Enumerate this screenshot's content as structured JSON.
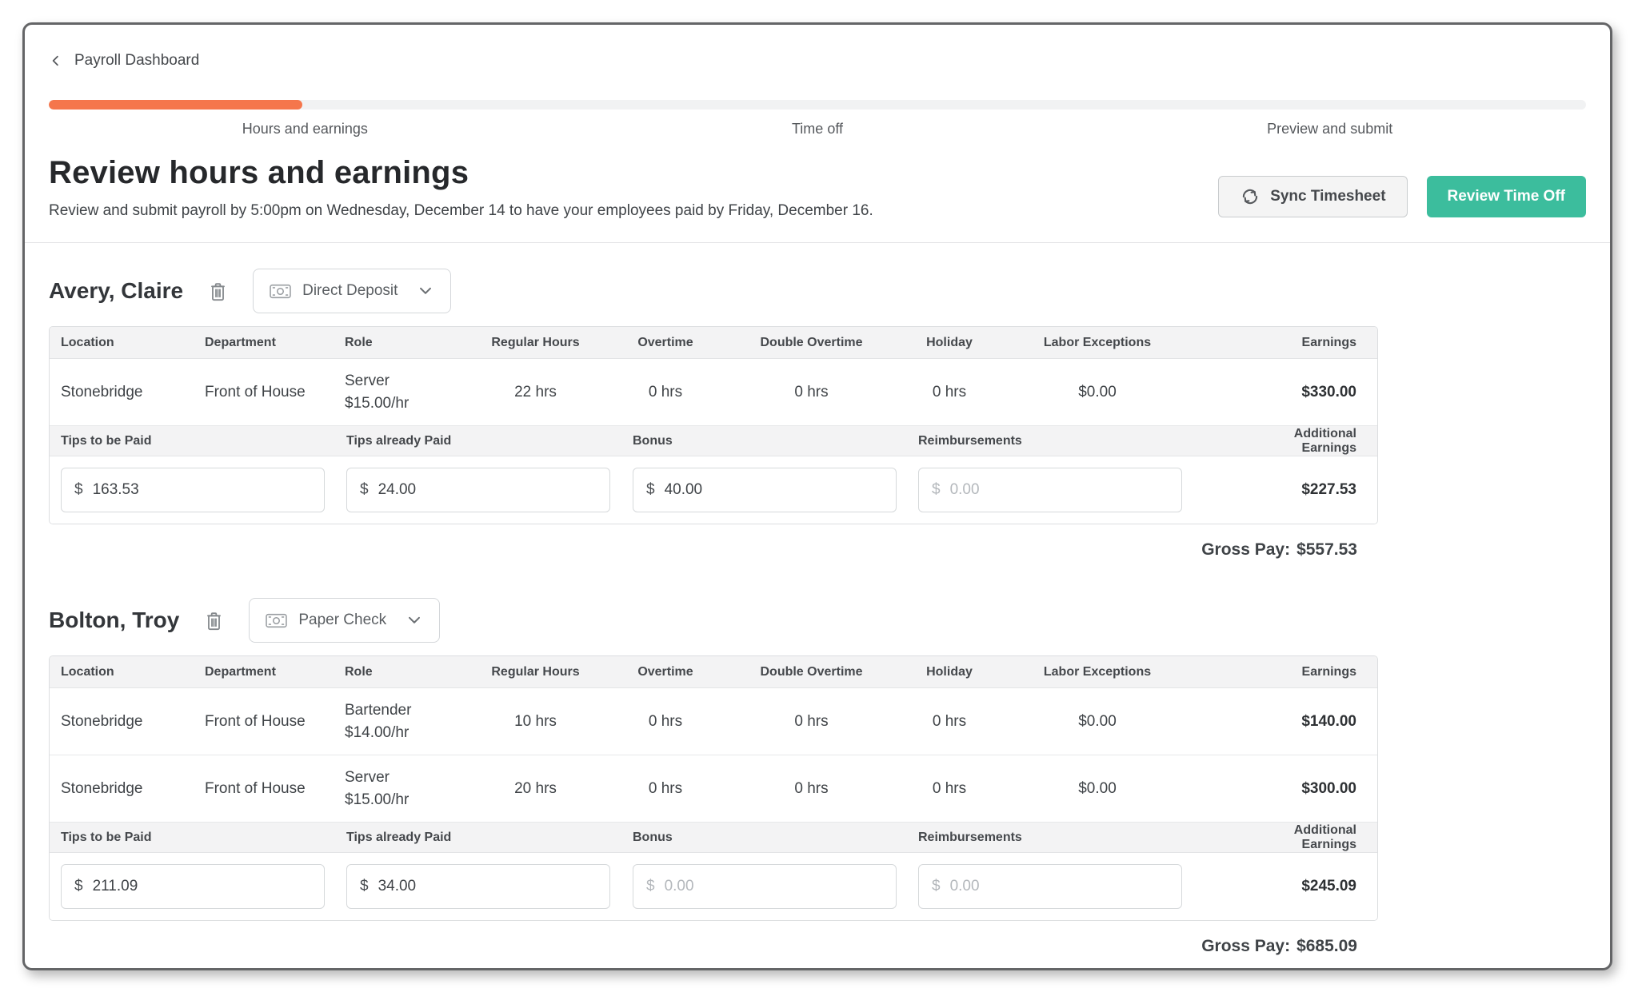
{
  "breadcrumb": {
    "label": "Payroll Dashboard",
    "back_icon": "chevron-left"
  },
  "progress": {
    "fill_percent": "16.5%",
    "fill_color": "#F5764C"
  },
  "steps": [
    {
      "label": "Hours and earnings"
    },
    {
      "label": "Time off"
    },
    {
      "label": "Preview and submit"
    }
  ],
  "header": {
    "title": "Review hours and earnings",
    "subtitle": "Review and submit payroll by 5:00pm on Wednesday, December 14 to have your employees paid by Friday, December 16.",
    "sync_button_label": "Sync Timesheet",
    "sync_icon": "sync-arrows",
    "review_button_label": "Review Time Off",
    "review_button_color": "#3CBD9D"
  },
  "labels": {
    "currency": "$",
    "amount_placeholder": "0.00",
    "gross_pay": "Gross Pay:",
    "delete_icon": "trash",
    "payment_icon": "banknote",
    "dropdown_icon": "chevron-down"
  },
  "columns": [
    "Location",
    "Department",
    "Role",
    "Regular Hours",
    "Overtime",
    "Double Overtime",
    "Holiday",
    "Labor Exceptions",
    "Earnings"
  ],
  "tips_columns": [
    "Tips to be Paid",
    "Tips already Paid",
    "Bonus",
    "Reimbursements",
    "Additional Earnings"
  ],
  "employees": [
    {
      "name": "Avery, Claire",
      "payment_method": "Direct Deposit",
      "rows": [
        {
          "location": "Stonebridge",
          "department": "Front of House",
          "role": "Server",
          "rate": "$15.00/hr",
          "regular_hours": "22 hrs",
          "overtime": "0 hrs",
          "double_overtime": "0 hrs",
          "holiday": "0 hrs",
          "labor_exceptions": "$0.00",
          "earnings": "$330.00"
        }
      ],
      "tips": {
        "tips_to_be_paid": "163.53",
        "tips_already_paid": "24.00",
        "bonus": "40.00",
        "reimbursements": "",
        "additional_earnings": "$227.53"
      },
      "gross_pay": "$557.53"
    },
    {
      "name": "Bolton, Troy",
      "payment_method": "Paper Check",
      "rows": [
        {
          "location": "Stonebridge",
          "department": "Front of House",
          "role": "Bartender",
          "rate": "$14.00/hr",
          "regular_hours": "10 hrs",
          "overtime": "0 hrs",
          "double_overtime": "0 hrs",
          "holiday": "0 hrs",
          "labor_exceptions": "$0.00",
          "earnings": "$140.00"
        },
        {
          "location": "Stonebridge",
          "department": "Front of House",
          "role": "Server",
          "rate": "$15.00/hr",
          "regular_hours": "20 hrs",
          "overtime": "0 hrs",
          "double_overtime": "0 hrs",
          "holiday": "0 hrs",
          "labor_exceptions": "$0.00",
          "earnings": "$300.00"
        }
      ],
      "tips": {
        "tips_to_be_paid": "211.09",
        "tips_already_paid": "34.00",
        "bonus": "",
        "reimbursements": "",
        "additional_earnings": "$245.09"
      },
      "gross_pay": "$685.09"
    }
  ]
}
